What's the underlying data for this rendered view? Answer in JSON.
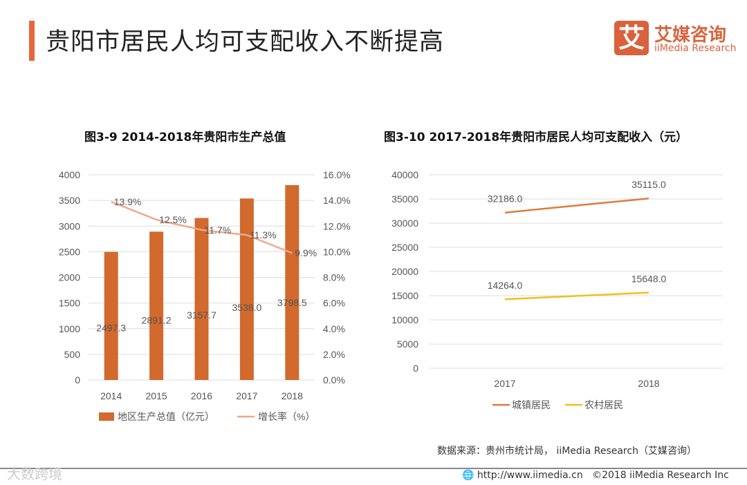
{
  "header": {
    "title": "贵阳市居民人均可支配收入不断提高",
    "logo_mark": "艾",
    "logo_cn": "艾媒咨询",
    "logo_en": "iiMedia Research"
  },
  "chart_data": [
    {
      "type": "bar+line",
      "title": "图3-9 2014-2018年贵阳市生产总值",
      "categories": [
        "2014",
        "2015",
        "2016",
        "2017",
        "2018"
      ],
      "series": [
        {
          "name": "地区生产总值（亿元）",
          "type": "bar",
          "axis": "left",
          "values": [
            2497.3,
            2891.2,
            3157.7,
            3538.0,
            3798.5
          ],
          "labels": [
            "2497.3",
            "2891.2",
            "3157.7",
            "3538.0",
            "3798.5"
          ],
          "color": "#d2692d"
        },
        {
          "name": "增长率（%）",
          "type": "line",
          "axis": "right",
          "values": [
            13.9,
            12.5,
            11.7,
            11.3,
            9.9
          ],
          "labels": [
            "13.9%",
            "12.5%",
            "11.7%",
            "11.3%",
            "9.9%"
          ],
          "color": "#f0a88a"
        }
      ],
      "ylim": [
        0,
        4000
      ],
      "yticks": [
        "0",
        "500",
        "1000",
        "1500",
        "2000",
        "2500",
        "3000",
        "3500",
        "4000"
      ],
      "y2lim": [
        0,
        16
      ],
      "y2ticks": [
        "0.0%",
        "2.0%",
        "4.0%",
        "6.0%",
        "8.0%",
        "10.0%",
        "12.0%",
        "14.0%",
        "16.0%"
      ],
      "legend": "bottom",
      "grid": true
    },
    {
      "type": "line",
      "title": "图3-10 2017-2018年贵阳市居民人均可支配收入（元）",
      "categories": [
        "2017",
        "2018"
      ],
      "series": [
        {
          "name": "城镇居民",
          "values": [
            32186.0,
            35115.0
          ],
          "labels": [
            "32186.0",
            "35115.0"
          ],
          "color": "#e07a38"
        },
        {
          "name": "农村居民",
          "values": [
            14264.0,
            15648.0
          ],
          "labels": [
            "14264.0",
            "15648.0"
          ],
          "color": "#f2bf1c"
        }
      ],
      "ylim": [
        0,
        40000
      ],
      "yticks": [
        "0",
        "5000",
        "10000",
        "15000",
        "20000",
        "25000",
        "30000",
        "35000",
        "40000"
      ],
      "legend": "bottom",
      "grid": true
    }
  ],
  "footer": {
    "source": "数据来源：贵州市统计局， iiMedia Research（艾媒咨询）",
    "url": "http://www.iimedia.cn",
    "copyright": "©2018  iiMedia Research Inc",
    "watermark": "大数跨境"
  }
}
